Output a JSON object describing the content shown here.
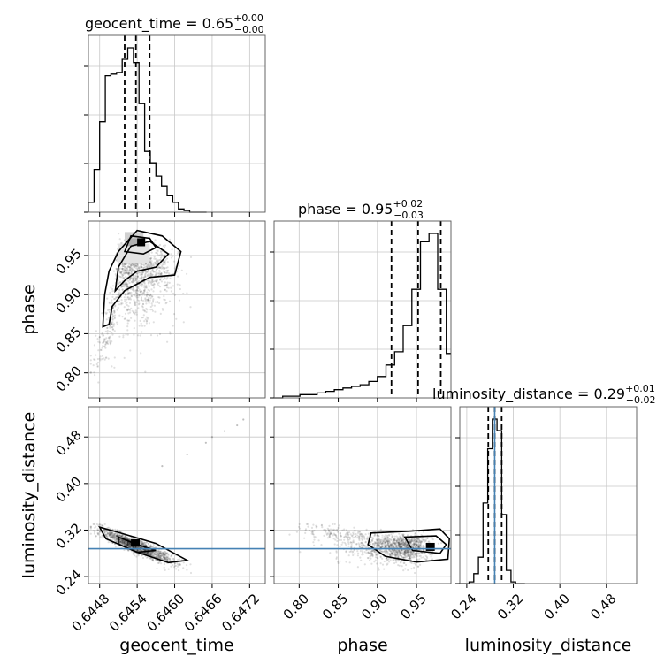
{
  "chart_data": {
    "type": "corner",
    "parameters": [
      "geocent_time",
      "phase",
      "luminosity_distance"
    ],
    "titles": {
      "geocent_time": {
        "prefix": "geocent_time = ",
        "median": "0.65",
        "plus": "+0.00",
        "minus": "−0.00"
      },
      "phase": {
        "prefix": "phase = ",
        "median": "0.95",
        "plus": "+0.02",
        "minus": "−0.03"
      },
      "luminosity_distance": {
        "prefix": "luminosity_distance = ",
        "median": "0.29",
        "plus": "+0.01",
        "minus": "−0.02"
      }
    },
    "axis_labels": {
      "geocent_time": "geocent_time",
      "phase": "phase",
      "luminosity_distance": "luminosity_distance"
    },
    "ranges": {
      "geocent_time": [
        0.64462,
        0.64745
      ],
      "phase": [
        0.768,
        0.994
      ],
      "luminosity_distance": [
        0.228,
        0.532
      ]
    },
    "ticks": {
      "geocent_time": {
        "values": [
          0.6448,
          0.6454,
          0.646,
          0.6466,
          0.6472
        ],
        "labels": [
          "0.6448",
          "0.6454",
          "0.6460",
          "0.6466",
          "0.6472"
        ]
      },
      "phase": {
        "values": [
          0.8,
          0.85,
          0.9,
          0.95
        ],
        "labels": [
          "0.80",
          "0.85",
          "0.90",
          "0.95"
        ]
      },
      "luminosity_distance": {
        "values": [
          0.24,
          0.32,
          0.4,
          0.48
        ],
        "labels": [
          "0.24",
          "0.32",
          "0.40",
          "0.48"
        ]
      }
    },
    "truth": {
      "luminosity_distance": 0.288
    },
    "quantiles": {
      "geocent_time": [
        0.6452,
        0.64538,
        0.6456
      ],
      "phase": [
        0.918,
        0.952,
        0.981
      ],
      "luminosity_distance": [
        0.277,
        0.288,
        0.3
      ]
    },
    "histograms": {
      "geocent_time": {
        "bin_edges": [
          0.64462,
          0.64471,
          0.6448,
          0.64489,
          0.64498,
          0.64507,
          0.64516,
          0.64525,
          0.64534,
          0.64543,
          0.64552,
          0.64561,
          0.6457,
          0.64579,
          0.64588,
          0.64597,
          0.64606,
          0.64615,
          0.64624,
          0.64633,
          0.64642,
          0.64651
        ],
        "counts": [
          0.06,
          0.26,
          0.55,
          0.83,
          0.84,
          0.85,
          0.93,
          1.0,
          0.91,
          0.66,
          0.37,
          0.3,
          0.22,
          0.16,
          0.1,
          0.06,
          0.02,
          0.01,
          0.0,
          0.0,
          0.0
        ]
      },
      "phase": {
        "bin_edges": [
          0.768,
          0.779,
          0.79,
          0.801,
          0.812,
          0.823,
          0.834,
          0.845,
          0.856,
          0.867,
          0.878,
          0.889,
          0.9,
          0.911,
          0.922,
          0.933,
          0.944,
          0.955,
          0.966,
          0.977,
          0.988,
          0.994
        ],
        "counts": [
          0.0,
          0.01,
          0.01,
          0.02,
          0.02,
          0.03,
          0.04,
          0.05,
          0.06,
          0.07,
          0.08,
          0.1,
          0.13,
          0.2,
          0.28,
          0.44,
          0.66,
          0.95,
          1.0,
          0.66,
          0.27
        ]
      },
      "luminosity_distance": {
        "bin_edges": [
          0.228,
          0.236,
          0.244,
          0.252,
          0.26,
          0.268,
          0.276,
          0.284,
          0.292,
          0.3,
          0.308,
          0.316,
          0.324,
          0.332,
          0.34
        ],
        "counts": [
          0.0,
          0.0,
          0.01,
          0.06,
          0.16,
          0.49,
          0.82,
          1.0,
          0.93,
          0.42,
          0.08,
          0.01,
          0.0,
          0.0
        ]
      }
    },
    "grid": true
  }
}
